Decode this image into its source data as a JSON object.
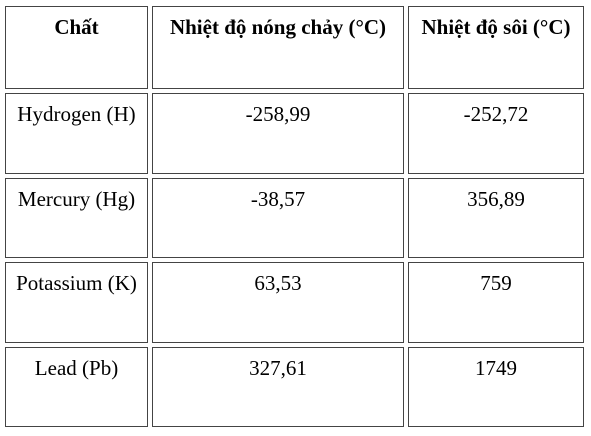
{
  "table": {
    "header": [
      "Chất",
      "Nhiệt độ nóng chảy (°C)",
      "Nhiệt độ sôi (°C)"
    ],
    "rows": [
      [
        "Hydrogen (H)",
        "-258,99",
        "-252,72"
      ],
      [
        "Mercury (Hg)",
        "-38,57",
        "356,89"
      ],
      [
        "Potassium (K)",
        "63,53",
        "759"
      ],
      [
        "Lead (Pb)",
        "327,61",
        "1749"
      ]
    ]
  }
}
